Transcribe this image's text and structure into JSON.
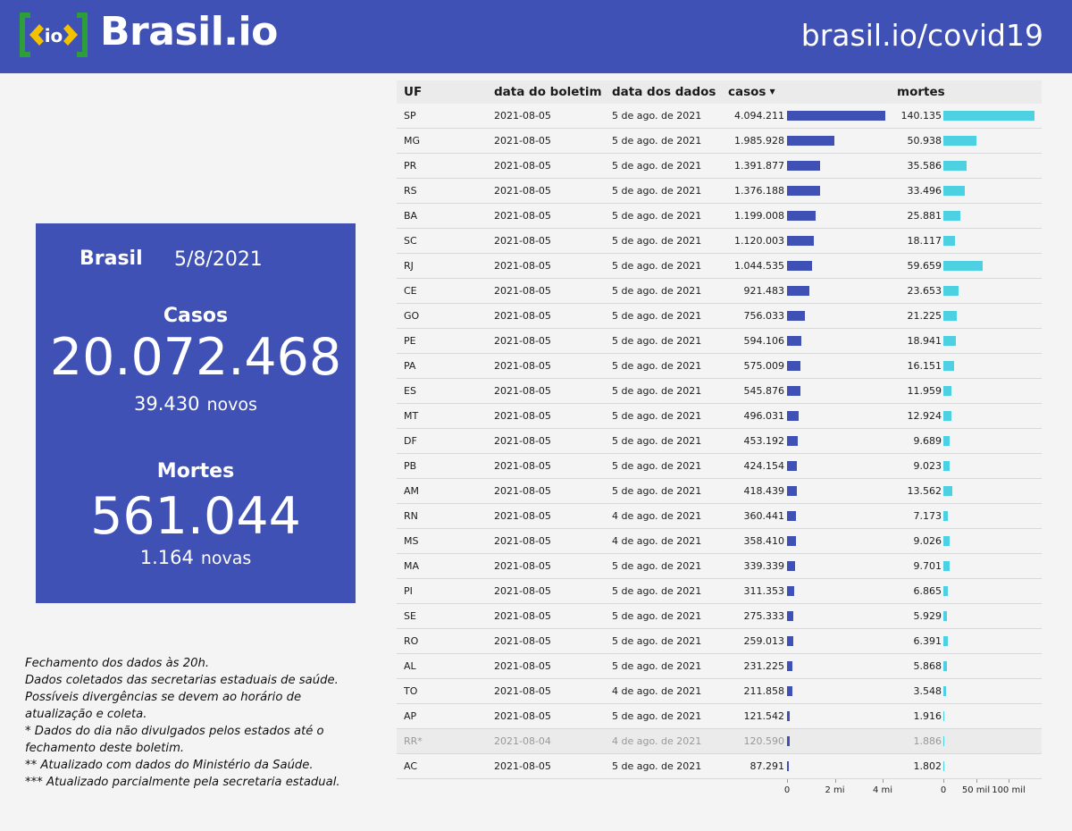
{
  "header": {
    "logo_name": "Brasil.io",
    "url": "brasil.io/covid19",
    "logo_mark_text": "io",
    "colors": {
      "background": "#3f51b5",
      "logo_green": "#2e9e3a",
      "logo_yellow": "#f2c200"
    }
  },
  "summary": {
    "region": "Brasil",
    "date": "5/8/2021",
    "cases": {
      "title": "Casos",
      "total": "20.072.468",
      "new": "39.430",
      "new_label": "novos"
    },
    "deaths": {
      "title": "Mortes",
      "total": "561.044",
      "new": "1.164",
      "new_label": "novas"
    }
  },
  "notes": [
    "Fechamento dos dados às 20h.",
    "Dados coletados das secretarias estaduais de saúde.",
    "Possíveis divergências se devem ao horário de",
    "atualização e coleta.",
    "* Dados do dia não divulgados pelos estados até o",
    "fechamento deste boletim.",
    "** Atualizado com dados do Ministério da Saúde.",
    "*** Atualizado parcialmente pela secretaria estadual."
  ],
  "chart_data": {
    "type": "table",
    "columns": [
      "UF",
      "data do boletim",
      "data dos dados",
      "casos",
      "mortes"
    ],
    "sort": {
      "column": "casos",
      "order": "descending"
    },
    "bar_colors": {
      "casos": "#3f51b5",
      "mortes": "#4dd0e1"
    },
    "axes": {
      "casos": {
        "range": [
          0,
          4000000
        ],
        "ticks": [
          0,
          2000000,
          4000000
        ],
        "tick_labels": [
          "0",
          "2 mi",
          "4 mi"
        ]
      },
      "mortes": {
        "range": [
          0,
          100000
        ],
        "ticks": [
          0,
          50000,
          100000
        ],
        "tick_labels": [
          "0",
          "50 mil",
          "100 mil"
        ]
      }
    },
    "rows": [
      {
        "uf": "SP",
        "boletim": "2021-08-05",
        "dados": "5 de ago. de 2021",
        "casos": 4094211,
        "casos_label": "4.094.211",
        "mortes": 140135,
        "mortes_label": "140.135"
      },
      {
        "uf": "MG",
        "boletim": "2021-08-05",
        "dados": "5 de ago. de 2021",
        "casos": 1985928,
        "casos_label": "1.985.928",
        "mortes": 50938,
        "mortes_label": "50.938"
      },
      {
        "uf": "PR",
        "boletim": "2021-08-05",
        "dados": "5 de ago. de 2021",
        "casos": 1391877,
        "casos_label": "1.391.877",
        "mortes": 35586,
        "mortes_label": "35.586"
      },
      {
        "uf": "RS",
        "boletim": "2021-08-05",
        "dados": "5 de ago. de 2021",
        "casos": 1376188,
        "casos_label": "1.376.188",
        "mortes": 33496,
        "mortes_label": "33.496"
      },
      {
        "uf": "BA",
        "boletim": "2021-08-05",
        "dados": "5 de ago. de 2021",
        "casos": 1199008,
        "casos_label": "1.199.008",
        "mortes": 25881,
        "mortes_label": "25.881"
      },
      {
        "uf": "SC",
        "boletim": "2021-08-05",
        "dados": "5 de ago. de 2021",
        "casos": 1120003,
        "casos_label": "1.120.003",
        "mortes": 18117,
        "mortes_label": "18.117"
      },
      {
        "uf": "RJ",
        "boletim": "2021-08-05",
        "dados": "5 de ago. de 2021",
        "casos": 1044535,
        "casos_label": "1.044.535",
        "mortes": 59659,
        "mortes_label": "59.659"
      },
      {
        "uf": "CE",
        "boletim": "2021-08-05",
        "dados": "5 de ago. de 2021",
        "casos": 921483,
        "casos_label": "921.483",
        "mortes": 23653,
        "mortes_label": "23.653"
      },
      {
        "uf": "GO",
        "boletim": "2021-08-05",
        "dados": "5 de ago. de 2021",
        "casos": 756033,
        "casos_label": "756.033",
        "mortes": 21225,
        "mortes_label": "21.225"
      },
      {
        "uf": "PE",
        "boletim": "2021-08-05",
        "dados": "5 de ago. de 2021",
        "casos": 594106,
        "casos_label": "594.106",
        "mortes": 18941,
        "mortes_label": "18.941"
      },
      {
        "uf": "PA",
        "boletim": "2021-08-05",
        "dados": "5 de ago. de 2021",
        "casos": 575009,
        "casos_label": "575.009",
        "mortes": 16151,
        "mortes_label": "16.151"
      },
      {
        "uf": "ES",
        "boletim": "2021-08-05",
        "dados": "5 de ago. de 2021",
        "casos": 545876,
        "casos_label": "545.876",
        "mortes": 11959,
        "mortes_label": "11.959"
      },
      {
        "uf": "MT",
        "boletim": "2021-08-05",
        "dados": "5 de ago. de 2021",
        "casos": 496031,
        "casos_label": "496.031",
        "mortes": 12924,
        "mortes_label": "12.924"
      },
      {
        "uf": "DF",
        "boletim": "2021-08-05",
        "dados": "5 de ago. de 2021",
        "casos": 453192,
        "casos_label": "453.192",
        "mortes": 9689,
        "mortes_label": "9.689"
      },
      {
        "uf": "PB",
        "boletim": "2021-08-05",
        "dados": "5 de ago. de 2021",
        "casos": 424154,
        "casos_label": "424.154",
        "mortes": 9023,
        "mortes_label": "9.023"
      },
      {
        "uf": "AM",
        "boletim": "2021-08-05",
        "dados": "5 de ago. de 2021",
        "casos": 418439,
        "casos_label": "418.439",
        "mortes": 13562,
        "mortes_label": "13.562"
      },
      {
        "uf": "RN",
        "boletim": "2021-08-05",
        "dados": "4 de ago. de 2021",
        "casos": 360441,
        "casos_label": "360.441",
        "mortes": 7173,
        "mortes_label": "7.173"
      },
      {
        "uf": "MS",
        "boletim": "2021-08-05",
        "dados": "4 de ago. de 2021",
        "casos": 358410,
        "casos_label": "358.410",
        "mortes": 9026,
        "mortes_label": "9.026"
      },
      {
        "uf": "MA",
        "boletim": "2021-08-05",
        "dados": "5 de ago. de 2021",
        "casos": 339339,
        "casos_label": "339.339",
        "mortes": 9701,
        "mortes_label": "9.701"
      },
      {
        "uf": "PI",
        "boletim": "2021-08-05",
        "dados": "5 de ago. de 2021",
        "casos": 311353,
        "casos_label": "311.353",
        "mortes": 6865,
        "mortes_label": "6.865"
      },
      {
        "uf": "SE",
        "boletim": "2021-08-05",
        "dados": "5 de ago. de 2021",
        "casos": 275333,
        "casos_label": "275.333",
        "mortes": 5929,
        "mortes_label": "5.929"
      },
      {
        "uf": "RO",
        "boletim": "2021-08-05",
        "dados": "5 de ago. de 2021",
        "casos": 259013,
        "casos_label": "259.013",
        "mortes": 6391,
        "mortes_label": "6.391"
      },
      {
        "uf": "AL",
        "boletim": "2021-08-05",
        "dados": "5 de ago. de 2021",
        "casos": 231225,
        "casos_label": "231.225",
        "mortes": 5868,
        "mortes_label": "5.868"
      },
      {
        "uf": "TO",
        "boletim": "2021-08-05",
        "dados": "4 de ago. de 2021",
        "casos": 211858,
        "casos_label": "211.858",
        "mortes": 3548,
        "mortes_label": "3.548"
      },
      {
        "uf": "AP",
        "boletim": "2021-08-05",
        "dados": "5 de ago. de 2021",
        "casos": 121542,
        "casos_label": "121.542",
        "mortes": 1916,
        "mortes_label": "1.916"
      },
      {
        "uf": "RR*",
        "boletim": "2021-08-04",
        "dados": "4 de ago. de 2021",
        "casos": 120590,
        "casos_label": "120.590",
        "mortes": 1886,
        "mortes_label": "1.886",
        "muted": true
      },
      {
        "uf": "AC",
        "boletim": "2021-08-05",
        "dados": "5 de ago. de 2021",
        "casos": 87291,
        "casos_label": "87.291",
        "mortes": 1802,
        "mortes_label": "1.802"
      }
    ]
  }
}
